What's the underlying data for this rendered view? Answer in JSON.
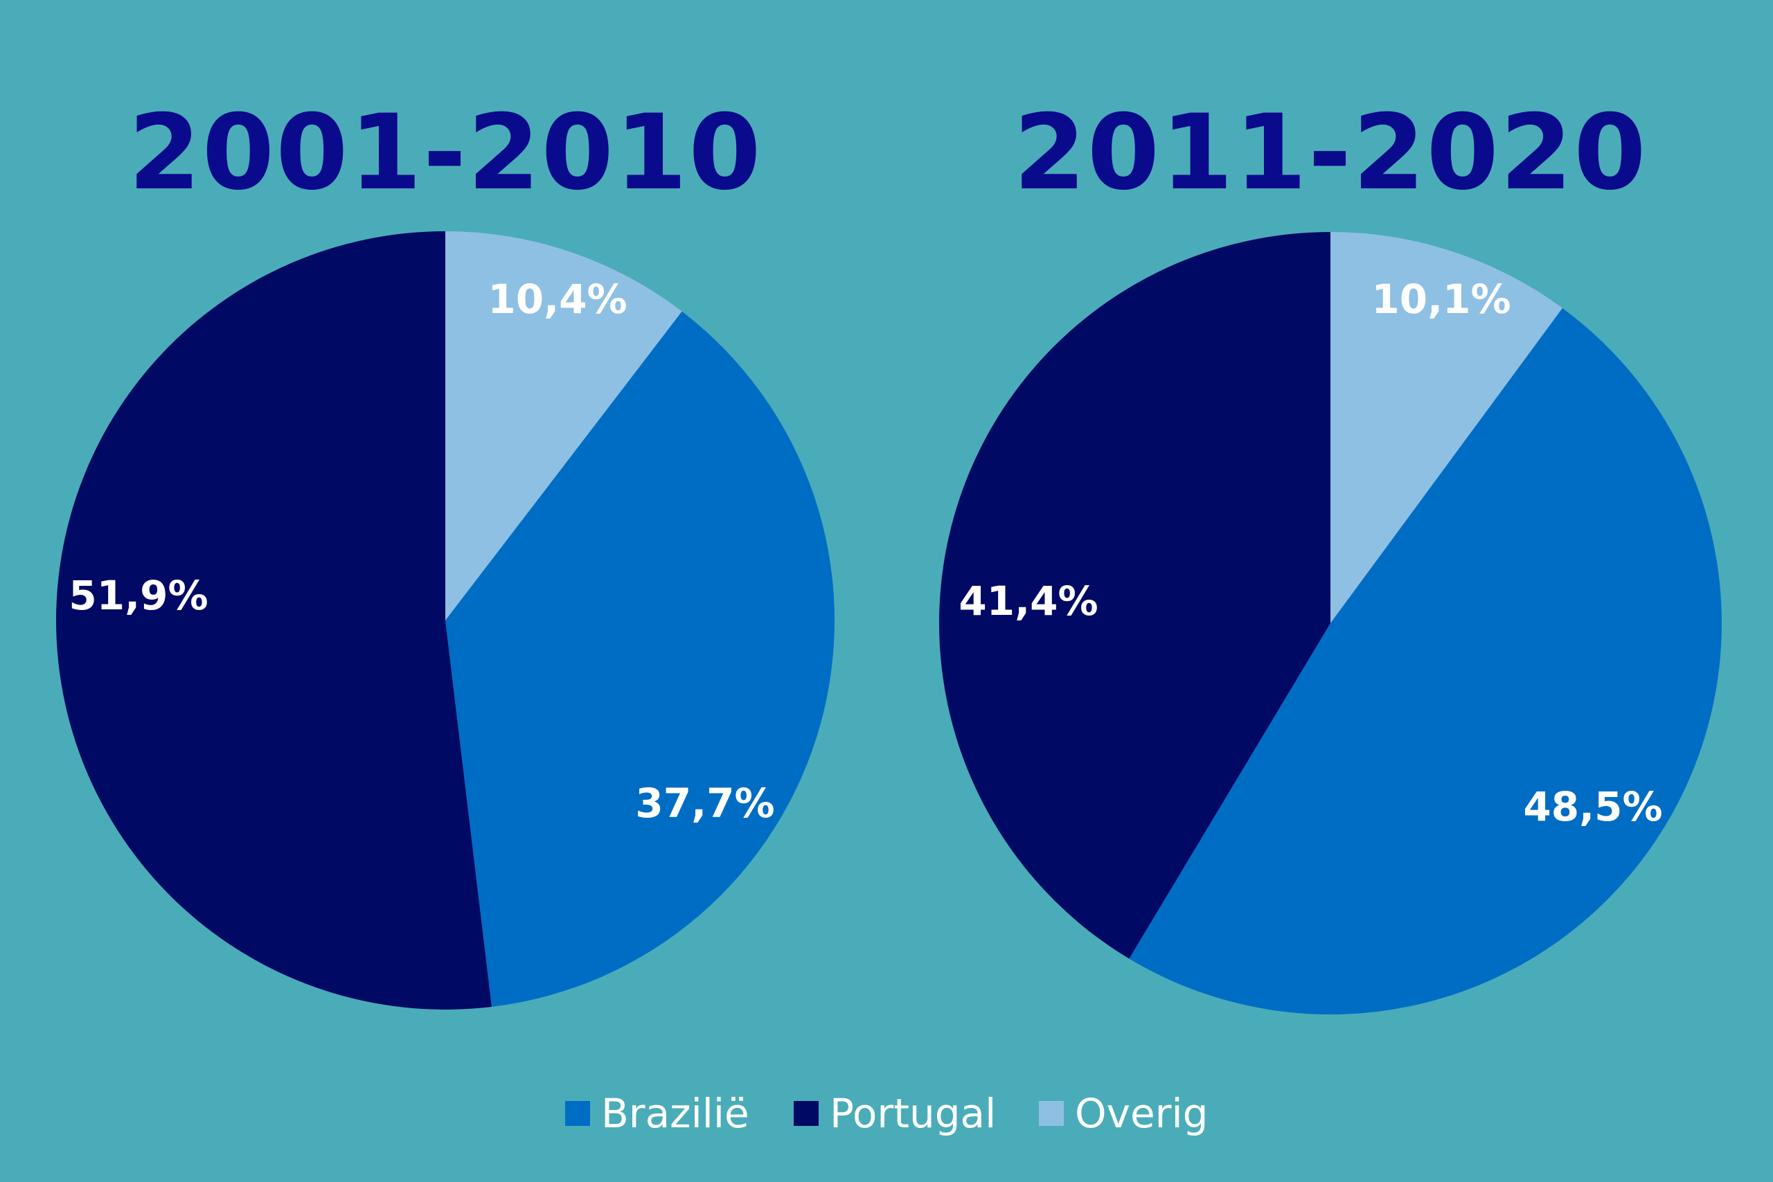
{
  "colors": {
    "background": "#4AACB8",
    "title": "#0A0A8C",
    "label": "#FFFFFF",
    "brazilie": "#006DC4",
    "portugal": "#000964",
    "overig": "#8EC0E4"
  },
  "legend": [
    {
      "label": "Brazilië",
      "color_key": "brazilie"
    },
    {
      "label": "Portugal",
      "color_key": "portugal"
    },
    {
      "label": "Overig",
      "color_key": "overig"
    }
  ],
  "chart_data": [
    {
      "type": "pie",
      "title": "2001-2010",
      "slices": [
        {
          "name": "Overig",
          "value": 10.4,
          "label": "10,4%"
        },
        {
          "name": "Brazilië",
          "value": 37.7,
          "label": "37,7%"
        },
        {
          "name": "Portugal",
          "value": 51.9,
          "label": "51,9%"
        }
      ]
    },
    {
      "type": "pie",
      "title": "2011-2020",
      "slices": [
        {
          "name": "Overig",
          "value": 10.1,
          "label": "10,1%"
        },
        {
          "name": "Brazilië",
          "value": 48.5,
          "label": "48,5%"
        },
        {
          "name": "Portugal",
          "value": 41.4,
          "label": "41,4%"
        }
      ]
    }
  ]
}
